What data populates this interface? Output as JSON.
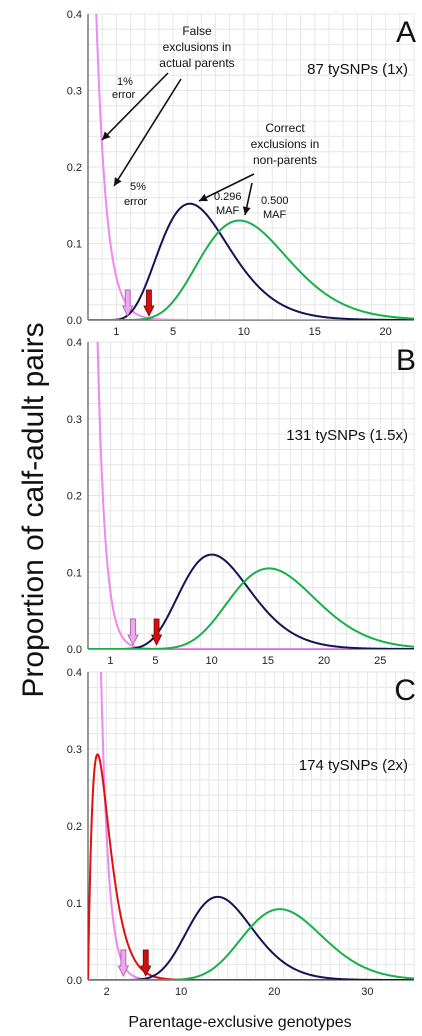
{
  "ylabel": "Proportion of calf-adult pairs",
  "xlabel": "Parentage-exclusive genotypes",
  "colors": {
    "err1": "#ee88ee",
    "err5": "#dd1111",
    "maf296": "#141452",
    "maf500": "#17b04a",
    "grid": "#e6e6e6",
    "arrow_red": "#cc1111",
    "arrow_pink": "#f0a6f0"
  },
  "chart_data": [
    {
      "type": "line",
      "panel_label": "A",
      "subtitle": "87 tySNPs (1x)",
      "xlim": [
        -1,
        22
      ],
      "ylim": [
        0,
        0.4
      ],
      "x_ticks": [
        "1",
        "5",
        "10",
        "15",
        "20"
      ],
      "y_ticks": [
        "0.0",
        "0.1",
        "0.2",
        "0.3",
        "0.4"
      ],
      "series": [
        {
          "name": "1% error",
          "color": "err1",
          "kind": "steep",
          "x0": -0.5,
          "peak": 0.45,
          "decay": 0.72
        },
        {
          "name": "5% error",
          "color": "err5",
          "kind": "gamma",
          "mean": 0.4,
          "sd": 0.9,
          "peak": 0.41
        },
        {
          "name": "0.296 MAF",
          "color": "maf296",
          "kind": "gamma",
          "mean": 7.2,
          "sd": 2.7,
          "peak": 0.152
        },
        {
          "name": "0.500 MAF",
          "color": "maf500",
          "kind": "gamma",
          "mean": 10.7,
          "sd": 3.3,
          "peak": 0.13
        }
      ],
      "cutoff_arrows": [
        {
          "x": 1.8,
          "color": "arrow_pink"
        },
        {
          "x": 3.3,
          "color": "arrow_red"
        }
      ],
      "annotations": {
        "false_exclusions": "False exclusions in actual parents",
        "false_exclusions_lines": [
          "False",
          "exclusions in",
          "actual parents"
        ],
        "err1": [
          "1%",
          "error"
        ],
        "err5": [
          "5%",
          "error"
        ],
        "correct": [
          "Correct",
          "exclusions in",
          "non-parents"
        ],
        "maf296": [
          "0.296",
          "MAF"
        ],
        "maf500": [
          "0.500",
          "MAF"
        ]
      }
    },
    {
      "type": "line",
      "panel_label": "B",
      "subtitle": "131 tySNPs (1.5x)",
      "xlim": [
        -1,
        28
      ],
      "ylim": [
        0,
        0.4
      ],
      "x_ticks": [
        "1",
        "5",
        "10",
        "15",
        "20",
        "25"
      ],
      "y_ticks": [
        "0.0",
        "0.1",
        "0.2",
        "0.3",
        "0.4"
      ],
      "series": [
        {
          "name": "1% error",
          "color": "err1",
          "kind": "steep",
          "x0": -0.2,
          "peak": 0.43,
          "decay": 0.68
        },
        {
          "name": "5% error",
          "color": "err5",
          "kind": "gamma",
          "mean": 1.1,
          "sd": 1.2,
          "peak": 0.348
        },
        {
          "name": "0.296 MAF",
          "color": "maf296",
          "kind": "gamma",
          "mean": 11.0,
          "sd": 3.3,
          "peak": 0.123
        },
        {
          "name": "0.500 MAF",
          "color": "maf500",
          "kind": "gamma",
          "mean": 16.1,
          "sd": 4.0,
          "peak": 0.105
        }
      ],
      "cutoff_arrows": [
        {
          "x": 3.0,
          "color": "arrow_pink"
        },
        {
          "x": 5.1,
          "color": "arrow_red"
        }
      ]
    },
    {
      "type": "line",
      "panel_label": "C",
      "subtitle": "174 tySNPs (2x)",
      "xlim": [
        0,
        35
      ],
      "ylim": [
        0,
        0.4
      ],
      "x_ticks": [
        "2",
        "10",
        "20",
        "30"
      ],
      "y_ticks": [
        "0.0",
        "0.1",
        "0.2",
        "0.3",
        "0.4"
      ],
      "series": [
        {
          "name": "1% error",
          "color": "err1",
          "kind": "steep",
          "x0": 1.3,
          "peak": 0.45,
          "decay": 0.8
        },
        {
          "name": "5% error",
          "color": "err5",
          "kind": "gamma",
          "mean": 2.0,
          "sd": 1.4,
          "peak": 0.293
        },
        {
          "name": "0.296 MAF",
          "color": "maf296",
          "kind": "gamma",
          "mean": 14.8,
          "sd": 3.6,
          "peak": 0.108
        },
        {
          "name": "0.500 MAF",
          "color": "maf500",
          "kind": "gamma",
          "mean": 21.5,
          "sd": 4.4,
          "peak": 0.092
        }
      ],
      "cutoff_arrows": [
        {
          "x": 3.8,
          "color": "arrow_pink"
        },
        {
          "x": 6.2,
          "color": "arrow_red"
        }
      ]
    }
  ]
}
